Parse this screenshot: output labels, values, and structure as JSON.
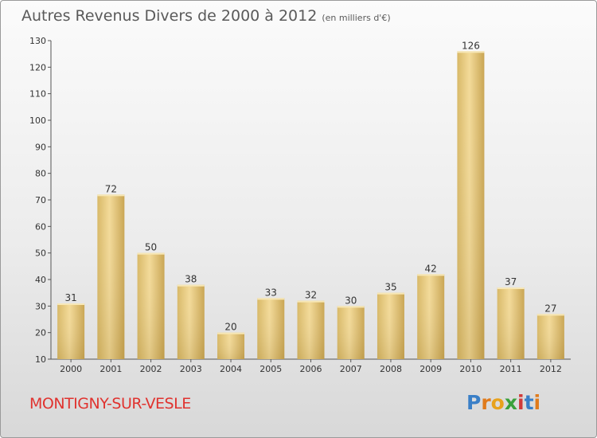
{
  "header": {
    "title": "Autres Revenus Divers de 2000 à 2012",
    "subtitle": "(en milliers d'€)"
  },
  "footer": {
    "commune": "MONTIGNY-SUR-VESLE",
    "logo_letters": [
      "P",
      "r",
      "o",
      "x",
      "i",
      "t",
      "i"
    ],
    "logo_colors": [
      "#3a7fc7",
      "#e07b1c",
      "#e8a21c",
      "#3aa03a",
      "#d03a3a",
      "#3a7fc7",
      "#e07b1c"
    ]
  },
  "chart_data": {
    "type": "bar",
    "categories": [
      "2000",
      "2001",
      "2002",
      "2003",
      "2004",
      "2005",
      "2006",
      "2007",
      "2008",
      "2009",
      "2010",
      "2011",
      "2012"
    ],
    "values": [
      31,
      72,
      50,
      38,
      20,
      33,
      32,
      30,
      35,
      42,
      126,
      37,
      27
    ],
    "title": "Autres Revenus Divers de 2000 à 2012",
    "xlabel": "",
    "ylabel": "",
    "ylim": [
      10,
      130
    ],
    "yticks": [
      10,
      20,
      30,
      40,
      50,
      60,
      70,
      80,
      90,
      100,
      110,
      120,
      130
    ],
    "grid": false,
    "bar_color": "#e9c97a"
  }
}
